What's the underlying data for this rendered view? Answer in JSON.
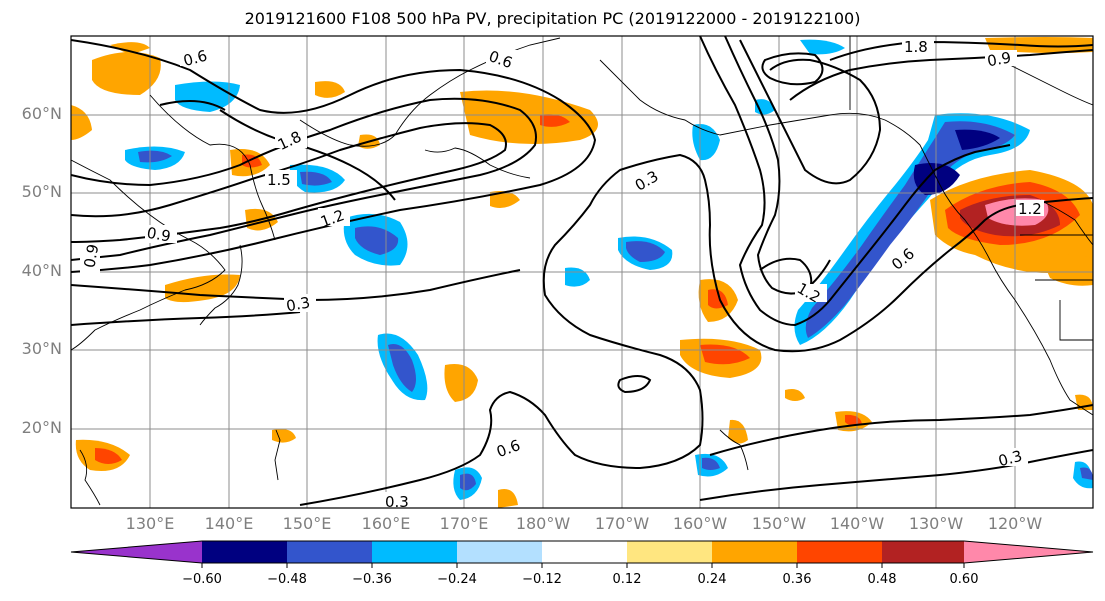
{
  "title": "2019121600 F108 500 hPa PV, precipitation PC (2019122000 - 2019122100)",
  "lat_labels": [
    "60°N",
    "50°N",
    "40°N",
    "30°N",
    "20°N"
  ],
  "lon_labels": [
    "130°E",
    "140°E",
    "150°E",
    "160°E",
    "170°E",
    "180°W",
    "170°W",
    "160°W",
    "150°W",
    "140°W",
    "130°W",
    "120°W"
  ],
  "colorbar": {
    "ticks": [
      "−0.60",
      "−0.48",
      "−0.36",
      "−0.24",
      "−0.12",
      "0.12",
      "0.24",
      "0.36",
      "0.48",
      "0.60"
    ],
    "colors": [
      "#9933cc",
      "#000080",
      "#3355cc",
      "#00bbff",
      "#b3e0ff",
      "#ffffff",
      "#ffe680",
      "#ffa500",
      "#ff4500",
      "#b22222",
      "#ff88aa"
    ]
  },
  "pv_contour_labels": [
    "0.6",
    "0.6",
    "1.8",
    "1.5",
    "1.2",
    "0.9",
    "0.9",
    "0.3",
    "0.3",
    "1.2",
    "0.6",
    "0.6",
    "0.3",
    "0.3",
    "1.8",
    "0.9",
    "1.2"
  ]
}
